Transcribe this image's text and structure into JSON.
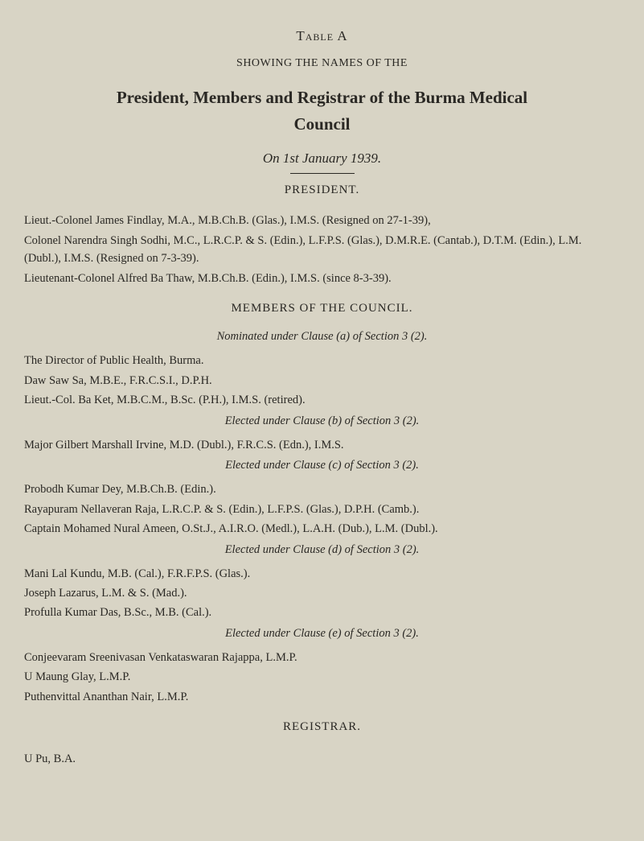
{
  "page": {
    "table_title": "Table A",
    "subtitle": "SHOWING THE NAMES OF THE",
    "main_heading": "President, Members and Registrar of the Burma Medical",
    "main_heading_line2": "Council",
    "date_line": "On 1st January 1939.",
    "president_header": "PRESIDENT.",
    "president_line1": "Lieut.-Colonel James Findlay, M.A., M.B.Ch.B. (Glas.), I.M.S. (Resigned on 27-1-39),",
    "president_line2": "Colonel Narendra Singh Sodhi, M.C., L.R.C.P. & S. (Edin.), L.F.P.S. (Glas.), D.M.R.E. (Cantab.), D.T.M. (Edin.), L.M. (Dubl.), I.M.S. (Resigned on 7-3-39).",
    "president_line3": "Lieutenant-Colonel Alfred Ba Thaw, M.B.Ch.B. (Edin.), I.M.S. (since 8-3-39).",
    "members_header": "MEMBERS OF THE COUNCIL.",
    "clause_a": "Nominated under Clause (a) of Section 3 (2).",
    "member_a1": "The Director of Public Health, Burma.",
    "member_a2": "Daw Saw Sa, M.B.E., F.R.C.S.I., D.P.H.",
    "member_a3": "Lieut.-Col. Ba Ket, M.B.C.M., B.Sc. (P.H.), I.M.S. (retired).",
    "clause_b": "Elected under Clause (b) of Section 3 (2).",
    "member_b1": "Major Gilbert Marshall Irvine, M.D. (Dubl.), F.R.C.S. (Edn.), I.M.S.",
    "clause_c": "Elected under Clause (c) of Section 3 (2).",
    "member_c1": "Probodh Kumar Dey, M.B.Ch.B. (Edin.).",
    "member_c2": "Rayapuram Nellaveran Raja, L.R.C.P. & S. (Edin.), L.F.P.S. (Glas.), D.P.H. (Camb.).",
    "member_c3": "Captain Mohamed Nural Ameen, O.St.J., A.I.R.O. (Medl.), L.A.H. (Dub.), L.M. (Dubl.).",
    "clause_d": "Elected under Clause (d) of Section 3 (2).",
    "member_d1": "Mani Lal Kundu, M.B. (Cal.), F.R.F.P.S. (Glas.).",
    "member_d2": "Joseph Lazarus, L.M. & S. (Mad.).",
    "member_d3": "Profulla Kumar Das, B.Sc., M.B. (Cal.).",
    "clause_e": "Elected under Clause (e) of Section 3 (2).",
    "member_e1": "Conjeevaram Sreenivasan Venkataswaran Rajappa, L.M.P.",
    "member_e2": "U Maung Glay, L.M.P.",
    "member_e3": "Puthenvittal Ananthan Nair, L.M.P.",
    "registrar_header": "REGISTRAR.",
    "registrar_name": "U Pu, B.A."
  },
  "style": {
    "background_color": "#d8d4c5",
    "text_color": "#2a2824",
    "body_fontsize": 14.5,
    "heading_fontsize": 21,
    "section_fontsize": 15
  }
}
